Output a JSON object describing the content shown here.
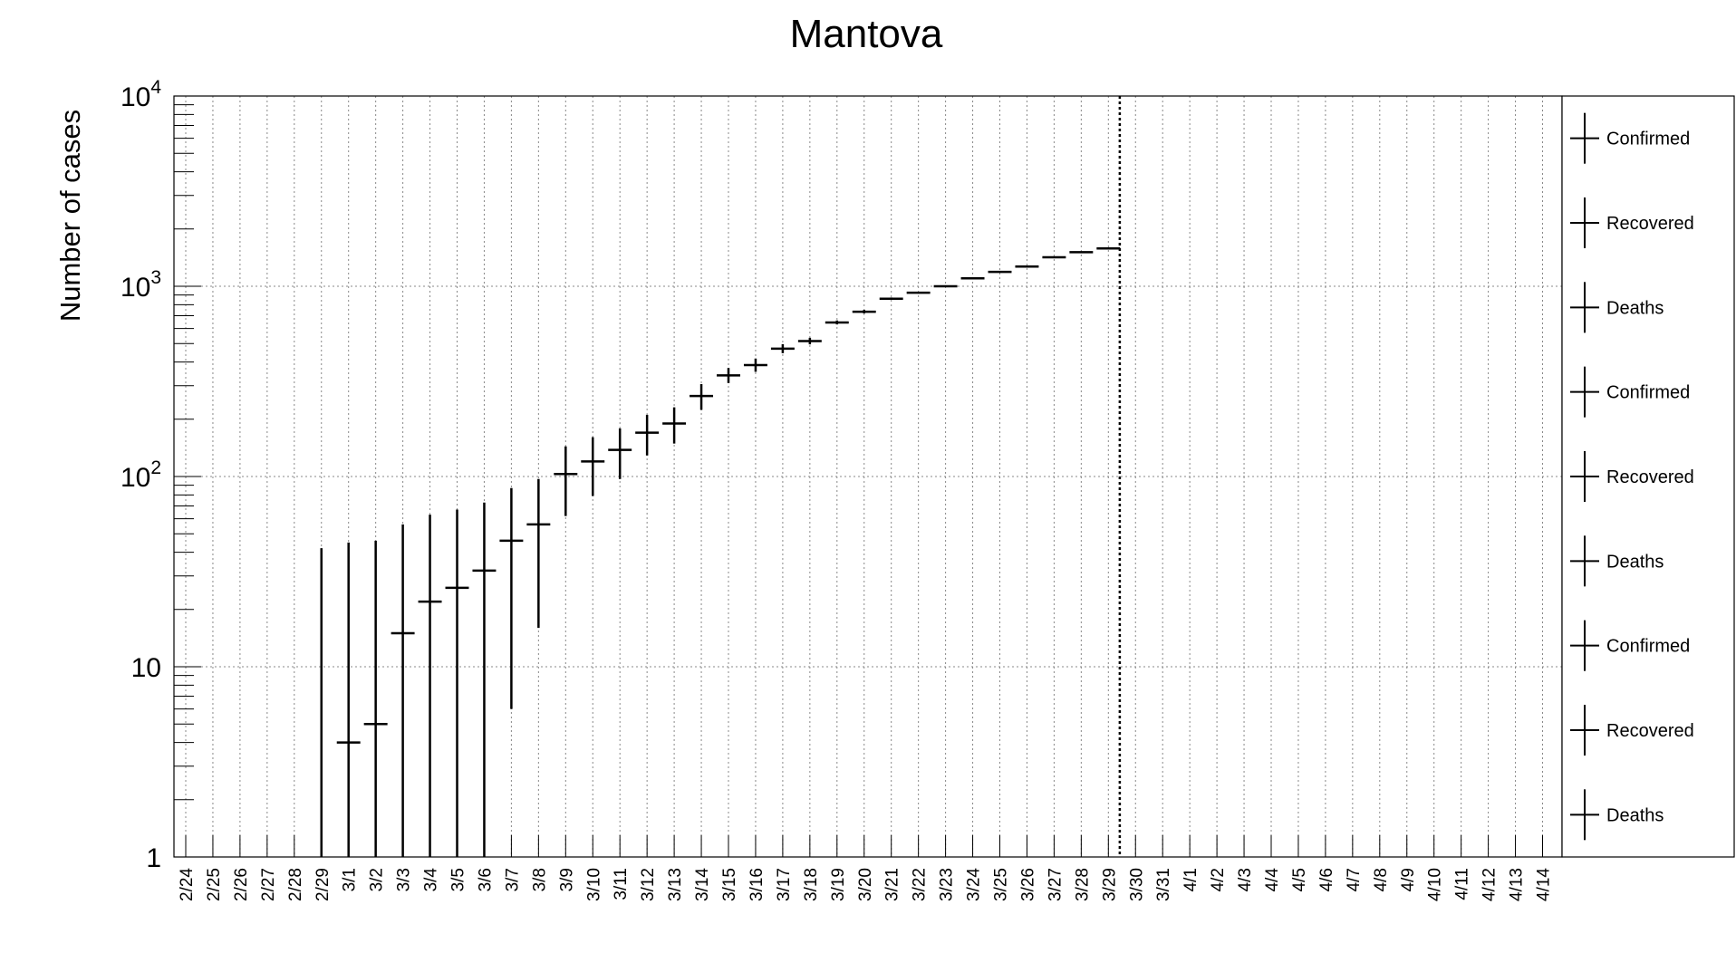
{
  "chart_data": {
    "type": "scatter",
    "title": "Mantova",
    "ylabel": "Number of cases",
    "xlabel": "",
    "yscale": "log",
    "ylim": [
      1,
      10000
    ],
    "y_ticks": [
      {
        "value": 1,
        "base": "1",
        "exp": ""
      },
      {
        "value": 10,
        "base": "10",
        "exp": ""
      },
      {
        "value": 100,
        "base": "10",
        "exp": "2"
      },
      {
        "value": 1000,
        "base": "10",
        "exp": "3"
      },
      {
        "value": 10000,
        "base": "10",
        "exp": "4"
      }
    ],
    "categories": [
      "2/24",
      "2/25",
      "2/26",
      "2/27",
      "2/28",
      "2/29",
      "3/1",
      "3/2",
      "3/3",
      "3/4",
      "3/5",
      "3/6",
      "3/7",
      "3/8",
      "3/9",
      "3/10",
      "3/11",
      "3/12",
      "3/13",
      "3/14",
      "3/15",
      "3/16",
      "3/17",
      "3/18",
      "3/19",
      "3/20",
      "3/21",
      "3/22",
      "3/23",
      "3/24",
      "3/25",
      "3/26",
      "3/27",
      "3/28",
      "3/29",
      "3/30",
      "3/31",
      "4/1",
      "4/2",
      "4/3",
      "4/4",
      "4/5",
      "4/6",
      "4/7",
      "4/8",
      "4/9",
      "4/10",
      "4/11",
      "4/12",
      "4/13",
      "4/14"
    ],
    "grid": true,
    "vertical_marker": "3/29",
    "series": [
      {
        "points": [
          {
            "x": "2/29",
            "y": null,
            "low": 1,
            "high": 42
          },
          {
            "x": "3/1",
            "y": 4,
            "low": 1,
            "high": 45
          },
          {
            "x": "3/2",
            "y": 5,
            "low": 1,
            "high": 46
          },
          {
            "x": "3/3",
            "y": 15,
            "low": 1,
            "high": 56
          },
          {
            "x": "3/4",
            "y": 22,
            "low": 1,
            "high": 63
          },
          {
            "x": "3/5",
            "y": 26,
            "low": 1,
            "high": 67
          },
          {
            "x": "3/6",
            "y": 32,
            "low": 1,
            "high": 73
          },
          {
            "x": "3/7",
            "y": 46,
            "low": 6,
            "high": 87
          },
          {
            "x": "3/8",
            "y": 56,
            "low": 16,
            "high": 97
          },
          {
            "x": "3/9",
            "y": 103,
            "low": 62,
            "high": 144
          },
          {
            "x": "3/10",
            "y": 120,
            "low": 79,
            "high": 161
          },
          {
            "x": "3/11",
            "y": 138,
            "low": 97,
            "high": 179
          },
          {
            "x": "3/12",
            "y": 170,
            "low": 129,
            "high": 211
          },
          {
            "x": "3/13",
            "y": 190,
            "low": 149,
            "high": 231
          },
          {
            "x": "3/14",
            "y": 265,
            "low": 224,
            "high": 306
          },
          {
            "x": "3/15",
            "y": 340,
            "low": 310,
            "high": 372
          },
          {
            "x": "3/16",
            "y": 385,
            "low": 355,
            "high": 417
          },
          {
            "x": "3/17",
            "y": 470,
            "low": 445,
            "high": 496
          },
          {
            "x": "3/18",
            "y": 515,
            "low": 495,
            "high": 536
          },
          {
            "x": "3/19",
            "y": 645,
            "low": 630,
            "high": 661
          },
          {
            "x": "3/20",
            "y": 735,
            "low": 720,
            "high": 751
          },
          {
            "x": "3/21",
            "y": 860,
            "low": 848,
            "high": 873
          },
          {
            "x": "3/22",
            "y": 925,
            "low": 915,
            "high": 935
          },
          {
            "x": "3/23",
            "y": 1000,
            "low": 992,
            "high": 1008
          },
          {
            "x": "3/24",
            "y": 1100,
            "low": 1094,
            "high": 1106
          },
          {
            "x": "3/25",
            "y": 1190,
            "low": 1185,
            "high": 1195
          },
          {
            "x": "3/26",
            "y": 1270,
            "low": 1266,
            "high": 1274
          },
          {
            "x": "3/27",
            "y": 1420,
            "low": 1417,
            "high": 1423
          },
          {
            "x": "3/28",
            "y": 1510,
            "low": 1508,
            "high": 1512
          },
          {
            "x": "3/29",
            "y": 1580,
            "low": 1579,
            "high": 1581
          }
        ]
      }
    ],
    "legend": {
      "position": "right",
      "entries": [
        "Confirmed",
        "Recovered",
        "Deaths",
        "Confirmed",
        "Recovered",
        "Deaths",
        "Confirmed",
        "Recovered",
        "Deaths"
      ]
    }
  }
}
